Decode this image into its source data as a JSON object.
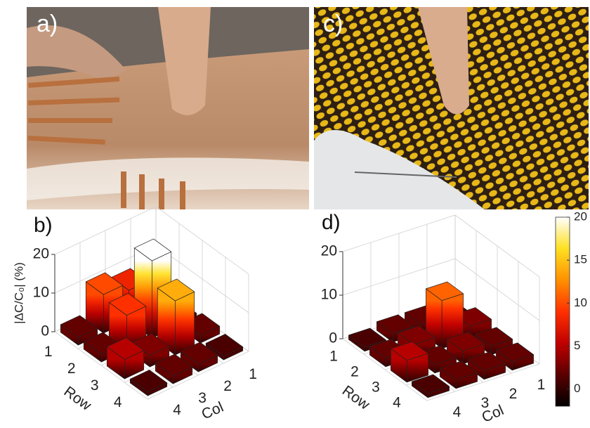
{
  "panels": {
    "a": {
      "label": "a)"
    },
    "c": {
      "label": "c)"
    }
  },
  "chart_data": [
    {
      "type": "bar3d",
      "label": "b)",
      "rows": [
        "1",
        "2",
        "3",
        "4"
      ],
      "cols": [
        "1",
        "2",
        "3",
        "4"
      ],
      "values": [
        [
          2,
          8,
          10,
          2
        ],
        [
          1,
          20,
          9,
          2
        ],
        [
          2,
          14,
          3,
          5
        ],
        [
          1,
          2,
          2,
          1
        ]
      ],
      "zlim": [
        0,
        20
      ],
      "zticks": [
        0,
        10,
        20
      ],
      "xlabel": "Row",
      "ylabel": "Col",
      "zlabel": "|ΔC/C₀| (%)",
      "grid": true
    },
    {
      "type": "bar3d",
      "label": "d)",
      "rows": [
        "1",
        "2",
        "3",
        "4"
      ],
      "cols": [
        "1",
        "2",
        "3",
        "4"
      ],
      "values": [
        [
          1,
          2,
          2,
          1
        ],
        [
          3,
          11,
          3,
          2
        ],
        [
          2,
          3,
          2,
          5
        ],
        [
          2,
          2,
          2,
          1
        ]
      ],
      "zlim": [
        0,
        20
      ],
      "zticks": [
        0,
        10,
        20
      ],
      "xlabel": "Row",
      "ylabel": "Col",
      "grid": true
    }
  ],
  "colorbar": {
    "colormap": [
      "#000000",
      "#5a0000",
      "#c00000",
      "#ff3000",
      "#ff9000",
      "#ffe020",
      "#ffffff"
    ],
    "lim": [
      -2,
      20
    ],
    "ticks": [
      0,
      5,
      10,
      15,
      20
    ]
  }
}
